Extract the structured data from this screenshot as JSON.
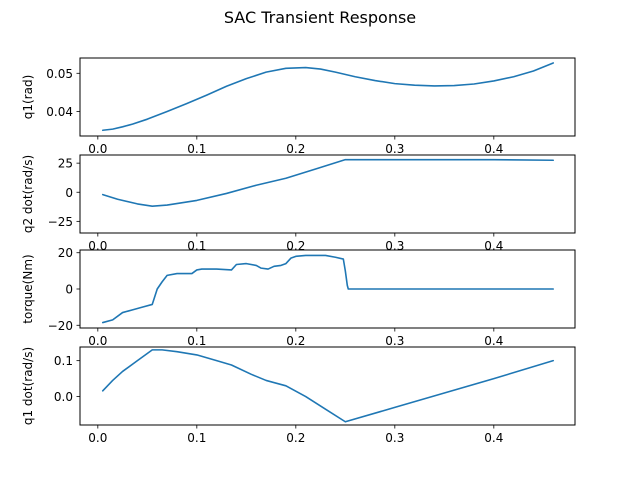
{
  "figure": {
    "title": "SAC Transient Response"
  },
  "chart_data": [
    {
      "type": "line",
      "title": "",
      "xlabel": "",
      "ylabel": "q1(rad)",
      "xlim": [
        -0.018,
        0.482
      ],
      "ylim": [
        0.0336,
        0.054
      ],
      "xticks": [
        0.0,
        0.1,
        0.2,
        0.3,
        0.4
      ],
      "xtick_labels": [
        "0.0",
        "0.1",
        "0.2",
        "0.3",
        "0.4"
      ],
      "yticks": [
        0.04,
        0.05
      ],
      "ytick_labels": [
        "0.04",
        "0.05"
      ],
      "grid": false,
      "series": [
        {
          "name": "",
          "color": "#1f77b4",
          "x": [
            0.005,
            0.015,
            0.025,
            0.035,
            0.05,
            0.07,
            0.09,
            0.11,
            0.13,
            0.15,
            0.17,
            0.19,
            0.21,
            0.225,
            0.24,
            0.26,
            0.28,
            0.3,
            0.32,
            0.34,
            0.36,
            0.38,
            0.4,
            0.42,
            0.44,
            0.46
          ],
          "y": [
            0.0351,
            0.0354,
            0.036,
            0.0367,
            0.038,
            0.04,
            0.0421,
            0.0443,
            0.0466,
            0.0486,
            0.0503,
            0.0513,
            0.0515,
            0.0511,
            0.0503,
            0.0491,
            0.0481,
            0.0473,
            0.0469,
            0.0467,
            0.0468,
            0.0472,
            0.048,
            0.0491,
            0.0506,
            0.0527
          ]
        }
      ]
    },
    {
      "type": "line",
      "title": "",
      "xlabel": "",
      "ylabel": "q2 dot(rad/s)",
      "xlim": [
        -0.018,
        0.482
      ],
      "ylim": [
        -35,
        32
      ],
      "xticks": [
        0.0,
        0.1,
        0.2,
        0.3,
        0.4
      ],
      "xtick_labels": [
        "0.0",
        "0.1",
        "0.2",
        "0.3",
        "0.4"
      ],
      "yticks": [
        -25,
        0,
        25
      ],
      "ytick_labels": [
        "−25",
        "0",
        "25"
      ],
      "grid": false,
      "series": [
        {
          "name": "",
          "color": "#1f77b4",
          "x": [
            0.005,
            0.02,
            0.04,
            0.055,
            0.07,
            0.1,
            0.13,
            0.16,
            0.19,
            0.22,
            0.25,
            0.3,
            0.35,
            0.4,
            0.46
          ],
          "y": [
            -2,
            -6,
            -10,
            -12,
            -11,
            -7,
            -1,
            6,
            12,
            20,
            28,
            28,
            28,
            28,
            27.5
          ]
        }
      ]
    },
    {
      "type": "line",
      "title": "",
      "xlabel": "",
      "ylabel": "torque(Nm)",
      "xlim": [
        -0.018,
        0.482
      ],
      "ylim": [
        -21.5,
        21.5
      ],
      "xticks": [
        0.0,
        0.1,
        0.2,
        0.3,
        0.4
      ],
      "xtick_labels": [
        "0.0",
        "0.1",
        "0.2",
        "0.3",
        "0.4"
      ],
      "yticks": [
        -20,
        0,
        20
      ],
      "ytick_labels": [
        "−20",
        "0",
        "20"
      ],
      "grid": false,
      "series": [
        {
          "name": "",
          "color": "#1f77b4",
          "x": [
            0.005,
            0.015,
            0.025,
            0.035,
            0.045,
            0.055,
            0.06,
            0.065,
            0.07,
            0.08,
            0.095,
            0.1,
            0.105,
            0.12,
            0.135,
            0.14,
            0.15,
            0.16,
            0.165,
            0.172,
            0.178,
            0.185,
            0.19,
            0.195,
            0.2,
            0.21,
            0.22,
            0.23,
            0.24,
            0.248,
            0.25,
            0.252,
            0.253,
            0.3,
            0.35,
            0.4,
            0.46
          ],
          "y": [
            -18.5,
            -17,
            -13,
            -11.5,
            -10,
            -8.5,
            0,
            4,
            7.5,
            8.5,
            8.5,
            10.5,
            11,
            11,
            10.5,
            13.5,
            14,
            13,
            11.5,
            11,
            12.5,
            13,
            14,
            17,
            18,
            18.5,
            18.5,
            18.5,
            17.5,
            16.5,
            10,
            2,
            0,
            0,
            0,
            0,
            0
          ]
        }
      ]
    },
    {
      "type": "line",
      "title": "",
      "xlabel": "",
      "ylabel": "q1 dot(rad/s)",
      "xlim": [
        -0.018,
        0.482
      ],
      "ylim": [
        -0.079,
        0.138
      ],
      "xticks": [
        0.0,
        0.1,
        0.2,
        0.3,
        0.4
      ],
      "xtick_labels": [
        "0.0",
        "0.1",
        "0.2",
        "0.3",
        "0.4"
      ],
      "yticks": [
        0.0,
        0.1
      ],
      "ytick_labels": [
        "0.0",
        "0.1"
      ],
      "grid": false,
      "series": [
        {
          "name": "",
          "color": "#1f77b4",
          "x": [
            0.005,
            0.015,
            0.025,
            0.04,
            0.055,
            0.065,
            0.08,
            0.1,
            0.12,
            0.135,
            0.155,
            0.17,
            0.19,
            0.21,
            0.23,
            0.25,
            0.3,
            0.35,
            0.4,
            0.46
          ],
          "y": [
            0.016,
            0.045,
            0.07,
            0.1,
            0.13,
            0.13,
            0.125,
            0.116,
            0.1,
            0.088,
            0.062,
            0.045,
            0.03,
            0.0,
            -0.035,
            -0.07,
            -0.03,
            0.01,
            0.05,
            0.1
          ]
        }
      ]
    }
  ]
}
